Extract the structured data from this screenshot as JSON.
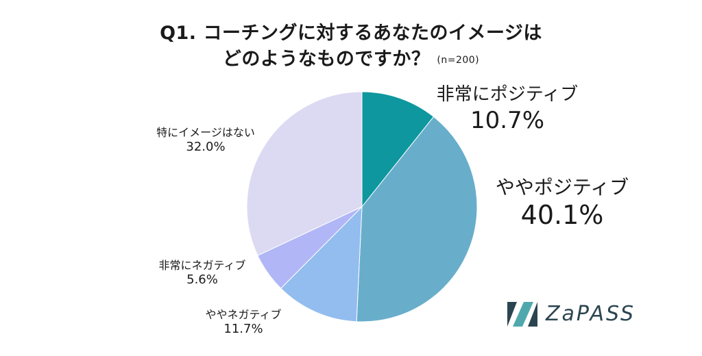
{
  "title": {
    "line1": "Q1. コーチングに対するあなたのイメージは",
    "line2": "どのようなものですか？",
    "note": "(n=200)"
  },
  "chart_data": {
    "type": "pie",
    "start_angle_deg": 0,
    "direction": "clockwise",
    "slices": [
      {
        "label": "非常にポジティブ",
        "value": 10.7,
        "display": "10.7%",
        "color": "#0e979e"
      },
      {
        "label": "ややポジティブ",
        "value": 40.1,
        "display": "40.1%",
        "color": "#68aecb"
      },
      {
        "label": "ややネガティブ",
        "value": 11.7,
        "display": "11.7%",
        "color": "#93bdef"
      },
      {
        "label": "非常にネガティブ",
        "value": 5.6,
        "display": "5.6%",
        "color": "#b0b6f6"
      },
      {
        "label": "特にイメージはない",
        "value": 32.0,
        "display": "32.0%",
        "color": "#dcdaf2"
      }
    ]
  },
  "logo": {
    "text": "ZaPASS",
    "colors": {
      "dark": "#2b4550",
      "light": "#4fa8ad"
    }
  }
}
